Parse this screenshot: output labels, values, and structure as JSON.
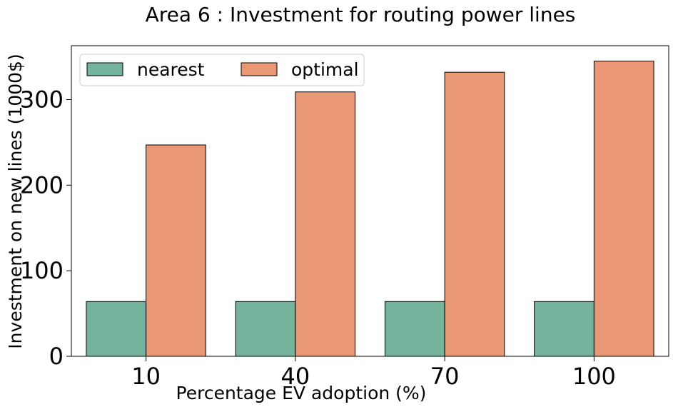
{
  "chart_data": {
    "type": "bar",
    "title": "Area 6 : Investment for routing power lines",
    "xlabel": "Percentage EV adoption (%)",
    "ylabel": "Investment on new lines (1000$)",
    "categories": [
      "10",
      "40",
      "70",
      "100"
    ],
    "series": [
      {
        "name": "nearest",
        "values": [
          64,
          64,
          64,
          64
        ],
        "color": "#74b49d"
      },
      {
        "name": "optimal",
        "values": [
          247,
          309,
          332,
          345
        ],
        "color": "#e99775"
      }
    ],
    "ylim": [
      0,
      363
    ],
    "yticks": [
      0,
      100,
      200,
      300
    ],
    "legend_position": "top-left",
    "grid": false
  }
}
